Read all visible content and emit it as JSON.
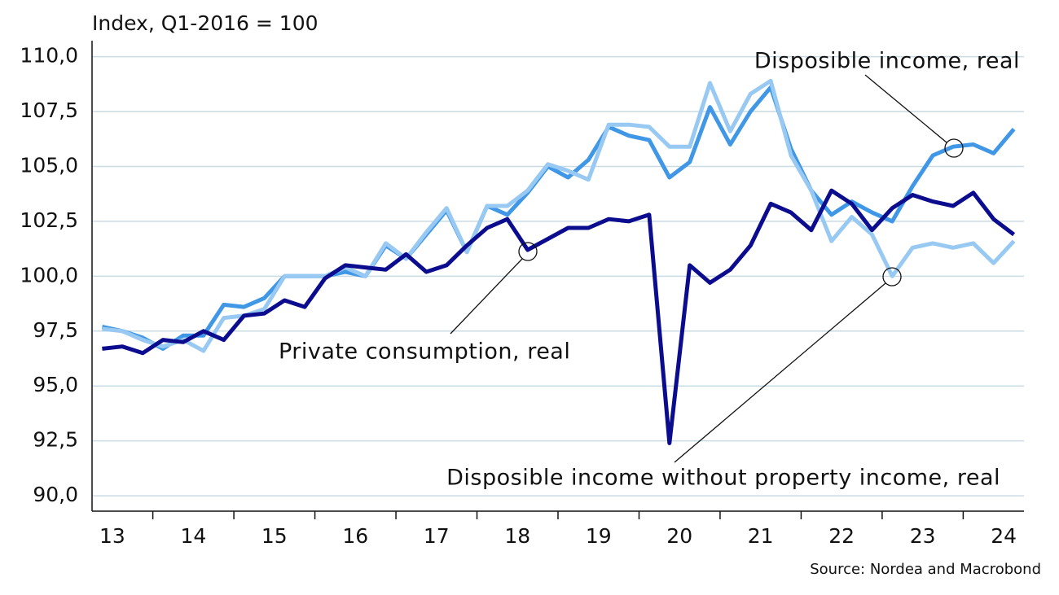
{
  "chart_data": {
    "type": "line",
    "y_label": "Index, Q1-2016 = 100",
    "source": "Source: Nordea and Macrobond",
    "x": [
      13.375,
      13.625,
      13.875,
      14.125,
      14.375,
      14.625,
      14.875,
      15.125,
      15.375,
      15.625,
      15.875,
      16.125,
      16.375,
      16.625,
      16.875,
      17.125,
      17.375,
      17.625,
      17.875,
      18.125,
      18.375,
      18.625,
      18.875,
      19.125,
      19.375,
      19.625,
      19.875,
      20.125,
      20.375,
      20.625,
      20.875,
      21.125,
      21.375,
      21.625,
      21.875,
      22.125,
      22.375,
      22.625,
      22.875,
      23.125,
      23.375,
      23.625,
      23.875,
      24.125,
      24.375,
      24.625
    ],
    "xlim": [
      13.25,
      24.75
    ],
    "xticks": [
      {
        "value": 13.5,
        "label": "13"
      },
      {
        "value": 14.5,
        "label": "14"
      },
      {
        "value": 15.5,
        "label": "15"
      },
      {
        "value": 16.5,
        "label": "16"
      },
      {
        "value": 17.5,
        "label": "17"
      },
      {
        "value": 18.5,
        "label": "18"
      },
      {
        "value": 19.5,
        "label": "19"
      },
      {
        "value": 20.5,
        "label": "20"
      },
      {
        "value": 21.5,
        "label": "21"
      },
      {
        "value": 22.5,
        "label": "22"
      },
      {
        "value": 23.5,
        "label": "23"
      },
      {
        "value": 24.5,
        "label": "24"
      }
    ],
    "xminorticks": [
      14,
      15,
      16,
      17,
      18,
      19,
      20,
      21,
      22,
      23,
      24
    ],
    "ylim": [
      89.3,
      110.8
    ],
    "yticks": [
      {
        "value": 90,
        "label": "90,0"
      },
      {
        "value": 92.5,
        "label": "92,5"
      },
      {
        "value": 95,
        "label": "95,0"
      },
      {
        "value": 97.5,
        "label": "97,5"
      },
      {
        "value": 100,
        "label": "100,0"
      },
      {
        "value": 102.5,
        "label": "102,5"
      },
      {
        "value": 105,
        "label": "105,0"
      },
      {
        "value": 107.5,
        "label": "107,5"
      },
      {
        "value": 110,
        "label": "110,0"
      }
    ],
    "grid": true,
    "series": [
      {
        "name": "Disposible income, real",
        "color": "#3f97e6",
        "values": [
          97.7,
          97.5,
          97.2,
          96.7,
          97.3,
          97.3,
          98.7,
          98.6,
          99.0,
          100.0,
          100.0,
          100.0,
          100.2,
          100.0,
          101.4,
          100.8,
          101.9,
          103.0,
          101.1,
          103.2,
          102.8,
          103.8,
          105.0,
          104.5,
          105.3,
          106.8,
          106.4,
          106.2,
          104.5,
          105.2,
          107.7,
          106.0,
          107.5,
          108.6,
          105.8,
          103.9,
          102.8,
          103.4,
          102.9,
          102.5,
          104.1,
          105.5,
          105.9,
          106.0,
          105.6,
          106.7
        ]
      },
      {
        "name": "Disposible income without property income, real",
        "color": "#98c9f2",
        "values": [
          97.6,
          97.5,
          97.1,
          96.8,
          97.1,
          96.6,
          98.1,
          98.2,
          98.5,
          100.0,
          100.0,
          100.0,
          100.4,
          100.0,
          101.5,
          100.8,
          102.0,
          103.1,
          101.1,
          103.2,
          103.2,
          103.9,
          105.1,
          104.8,
          104.4,
          106.9,
          106.9,
          106.8,
          105.9,
          105.9,
          108.8,
          106.6,
          108.3,
          108.9,
          105.5,
          103.9,
          101.6,
          102.7,
          101.9,
          100.0,
          101.3,
          101.5,
          101.3,
          101.5,
          100.6,
          101.6
        ]
      },
      {
        "name": "Private consumption, real",
        "color": "#0b0c8e",
        "values": [
          96.7,
          96.8,
          96.5,
          97.1,
          97.0,
          97.5,
          97.1,
          98.2,
          98.3,
          98.9,
          98.6,
          99.9,
          100.5,
          100.4,
          100.3,
          101.0,
          100.2,
          100.5,
          101.4,
          102.2,
          102.6,
          101.2,
          101.7,
          102.2,
          102.2,
          102.6,
          102.5,
          102.8,
          92.4,
          100.5,
          99.7,
          100.3,
          101.4,
          103.3,
          102.9,
          102.1,
          103.9,
          103.3,
          102.1,
          103.1,
          103.7,
          103.4,
          103.2,
          103.8,
          102.6,
          101.9
        ]
      }
    ]
  }
}
